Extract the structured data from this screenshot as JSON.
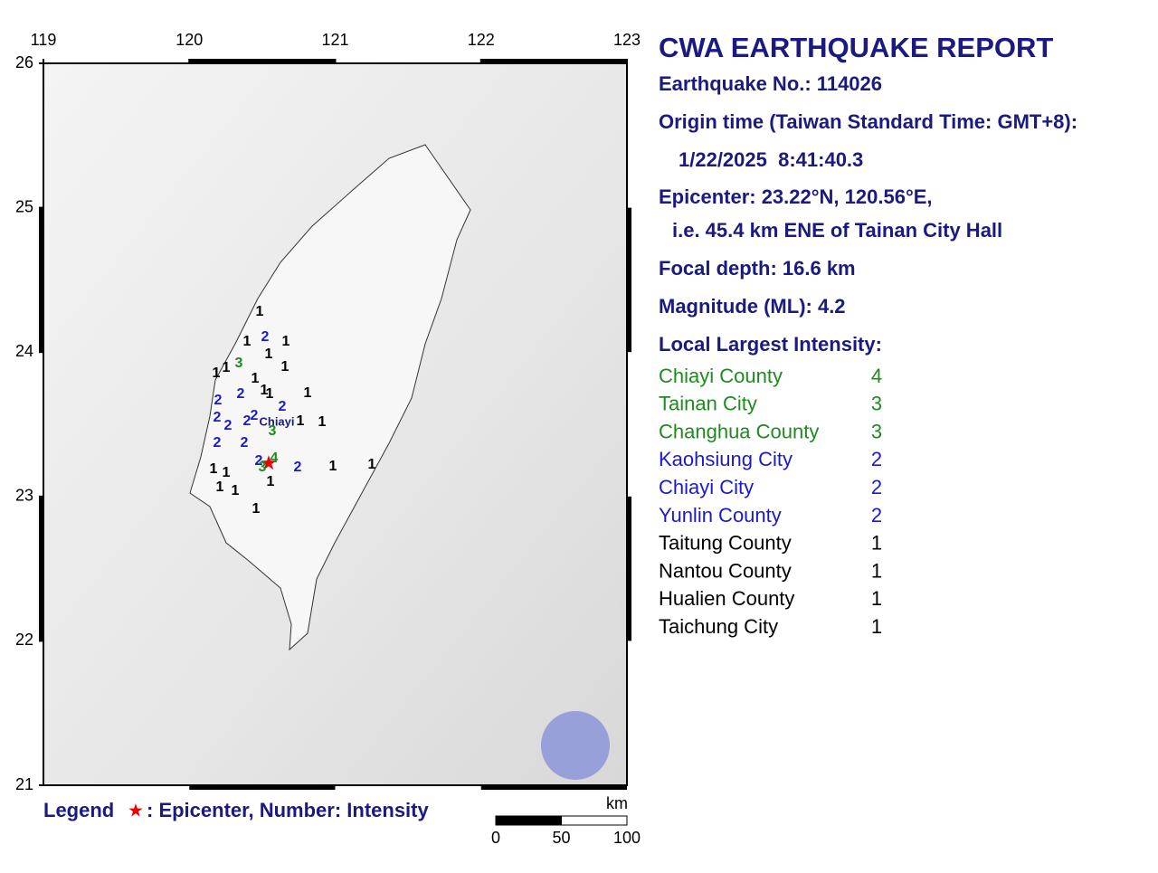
{
  "report": {
    "title": "CWA EARTHQUAKE REPORT",
    "earthquake_no": "Earthquake No.: 114026",
    "origin_label": "Origin time (Taiwan Standard Time: GMT+8):",
    "origin_time": "1/22/2025  8:41:40.3",
    "epicenter": "Epicenter: 23.22°N, 120.56°E,",
    "epicenter_ref": "i.e. 45.4 km ENE of Tainan City Hall",
    "depth": "Focal depth: 16.6 km",
    "magnitude": "Magnitude (ML): 4.2",
    "intensity_heading": "Local Largest Intensity:",
    "intensities": [
      {
        "area": "Chiayi County",
        "level": 4
      },
      {
        "area": "Tainan City",
        "level": 3
      },
      {
        "area": "Changhua County",
        "level": 3
      },
      {
        "area": "Kaohsiung City",
        "level": 2
      },
      {
        "area": "Chiayi City",
        "level": 2
      },
      {
        "area": "Yunlin County",
        "level": 2
      },
      {
        "area": "Taitung County",
        "level": 1
      },
      {
        "area": "Nantou County",
        "level": 1
      },
      {
        "area": "Hualien County",
        "level": 1
      },
      {
        "area": "Taichung City",
        "level": 1
      }
    ]
  },
  "level_colors": {
    "1": "#000000",
    "2": "#1a1acc",
    "3": "#1f8a1f",
    "4": "#1f8a1f"
  },
  "map": {
    "lon_ticks": [
      119,
      120,
      121,
      122,
      123
    ],
    "lat_ticks": [
      21,
      22,
      23,
      24,
      25,
      26
    ],
    "city_label": "Chiayi",
    "station_intensities": [
      1,
      2,
      1,
      1,
      1,
      3,
      1,
      1,
      1,
      1,
      1,
      1,
      1,
      2,
      2,
      2,
      2,
      2,
      2,
      2,
      1,
      1,
      3,
      2,
      2,
      2,
      3,
      4,
      2,
      1,
      1,
      1,
      1,
      1,
      1,
      1,
      1
    ]
  },
  "legend": {
    "label": "Legend",
    "star": "★",
    "text": ": Epicenter, Number: Intensity"
  },
  "scale": {
    "unit": "km",
    "ticks": [
      0,
      50,
      100
    ]
  }
}
